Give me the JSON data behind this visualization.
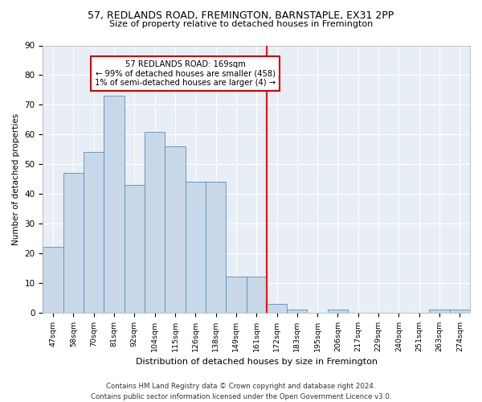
{
  "title1": "57, REDLANDS ROAD, FREMINGTON, BARNSTAPLE, EX31 2PP",
  "title2": "Size of property relative to detached houses in Fremington",
  "xlabel": "Distribution of detached houses by size in Fremington",
  "ylabel": "Number of detached properties",
  "footer": "Contains HM Land Registry data © Crown copyright and database right 2024.\nContains public sector information licensed under the Open Government Licence v3.0.",
  "bin_labels": [
    "47sqm",
    "58sqm",
    "70sqm",
    "81sqm",
    "92sqm",
    "104sqm",
    "115sqm",
    "126sqm",
    "138sqm",
    "149sqm",
    "161sqm",
    "172sqm",
    "183sqm",
    "195sqm",
    "206sqm",
    "217sqm",
    "229sqm",
    "240sqm",
    "251sqm",
    "263sqm",
    "274sqm"
  ],
  "bar_heights": [
    22,
    47,
    54,
    73,
    43,
    61,
    56,
    44,
    44,
    12,
    12,
    3,
    1,
    0,
    1,
    0,
    0,
    0,
    0,
    1,
    1
  ],
  "bar_color": "#c8d8e8",
  "bar_edge_color": "#5b8db8",
  "vline_bin_index": 11,
  "annotation_line1": "57 REDLANDS ROAD: 169sqm",
  "annotation_line2": "← 99% of detached houses are smaller (458)",
  "annotation_line3": "1% of semi-detached houses are larger (4) →",
  "annotation_box_edgecolor": "#cc0000",
  "ylim": [
    0,
    90
  ],
  "yticks": [
    0,
    10,
    20,
    30,
    40,
    50,
    60,
    70,
    80,
    90
  ],
  "bg_color": "#e8eef5"
}
